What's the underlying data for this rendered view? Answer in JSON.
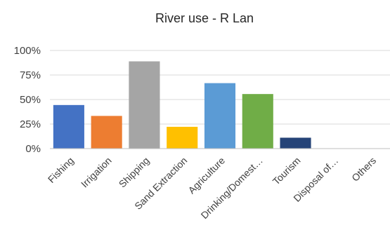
{
  "chart_data": {
    "type": "bar",
    "title": "River use - R Lan",
    "categories": [
      "Fishing",
      "Irrigation",
      "Shipping",
      "Sand Extraction",
      "Agriculture",
      "Drinking/Domest…",
      "Tourism",
      "Disposal of…",
      "Others"
    ],
    "values": [
      44.4,
      33.3,
      88.9,
      22.2,
      66.7,
      55.6,
      11.1,
      0,
      0
    ],
    "colors": [
      "#4472c4",
      "#ed7d31",
      "#a5a5a5",
      "#ffc000",
      "#5b9bd5",
      "#70ad47",
      "#264478",
      "#9e480e",
      "#636363"
    ],
    "ylim": [
      0,
      100
    ],
    "yticks": [
      0,
      25,
      50,
      75,
      100
    ],
    "ytick_labels": [
      "0%",
      "25%",
      "50%",
      "75%",
      "100%"
    ],
    "grid": true,
    "legend": "none"
  }
}
